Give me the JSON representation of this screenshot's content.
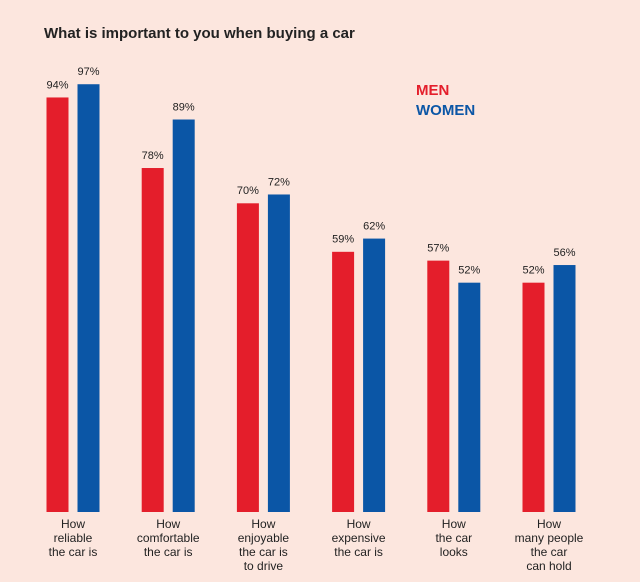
{
  "chart_data": {
    "type": "bar",
    "title": "What is important to you when buying a car",
    "categories": [
      "How\nreliable\nthe car is",
      "How\ncomfortable\nthe car is",
      "How\nenjoyable\nthe car is\nto drive",
      "How\nexpensive\nthe car is",
      "How\nthe car\nlooks",
      "How\nmany people\nthe car\ncan hold"
    ],
    "series": [
      {
        "name": "MEN",
        "color": "#e41e2b",
        "values": [
          94,
          78,
          70,
          59,
          57,
          52
        ],
        "value_labels": [
          "94%",
          "78%",
          "70%",
          "59%",
          "57%",
          "52%"
        ]
      },
      {
        "name": "WOMEN",
        "color": "#0b56a6",
        "values": [
          97,
          89,
          72,
          62,
          52,
          56
        ],
        "value_labels": [
          "97%",
          "89%",
          "72%",
          "62%",
          "52%",
          "56%"
        ]
      }
    ]
  }
}
